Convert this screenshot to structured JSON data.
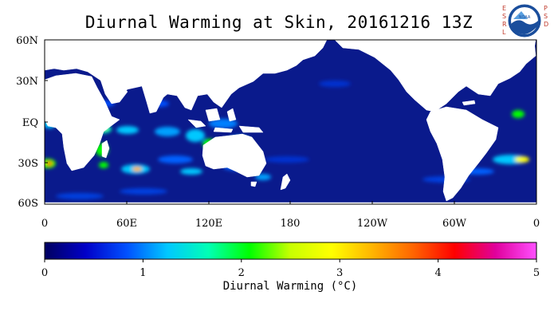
{
  "title": "Diurnal Warming at Skin, 20161216 13Z",
  "logo": {
    "agency_letters_left": [
      "E",
      "S",
      "R",
      "L"
    ],
    "agency_letters_right": [
      "P",
      "S",
      "D"
    ],
    "seal_text": "NOAA"
  },
  "map": {
    "lat_labels": [
      "60N",
      "30N",
      "EQ",
      "30S",
      "60S"
    ],
    "lon_labels": [
      "0",
      "60E",
      "120E",
      "180",
      "120W",
      "60W",
      "0"
    ],
    "ocean_color": "#0a1a8c",
    "land_color": "#ffffff"
  },
  "colorbar": {
    "min": 0,
    "max": 5,
    "tick_labels": [
      "0",
      "1",
      "2",
      "3",
      "4",
      "5"
    ],
    "title": "Diurnal Warming (°C)",
    "colors": [
      "#000060",
      "#0000c8",
      "#0050ff",
      "#00c8ff",
      "#00ffb4",
      "#00ff00",
      "#c8ff00",
      "#ffff00",
      "#ffb400",
      "#ff6400",
      "#ff0000",
      "#e0009c",
      "#ff50ff"
    ]
  }
}
